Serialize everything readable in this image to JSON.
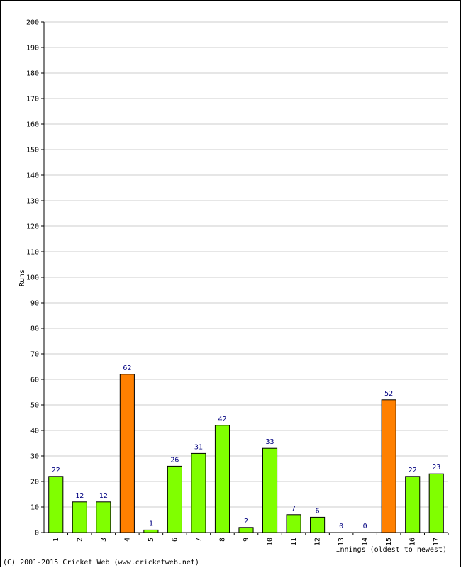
{
  "chart_data": {
    "type": "bar",
    "categories": [
      "1",
      "2",
      "3",
      "4",
      "5",
      "6",
      "7",
      "8",
      "9",
      "10",
      "11",
      "12",
      "13",
      "14",
      "15",
      "16",
      "17"
    ],
    "values": [
      22,
      12,
      12,
      62,
      1,
      26,
      31,
      42,
      2,
      33,
      7,
      6,
      0,
      0,
      52,
      22,
      23
    ],
    "highlight": [
      false,
      false,
      false,
      true,
      false,
      false,
      false,
      false,
      false,
      false,
      false,
      false,
      false,
      false,
      true,
      false,
      false
    ],
    "title": "",
    "xlabel": "Innings (oldest to newest)",
    "ylabel": "Runs",
    "ylim": [
      0,
      200
    ],
    "ytick_step": 10,
    "grid": true,
    "colors": {
      "normal": "#80ff00",
      "highlight": "#ff8000",
      "bar_stroke": "#000000",
      "grid": "#cccccc",
      "data_label": "#000080"
    }
  },
  "footer": {
    "copyright": "(C) 2001-2015 Cricket Web (www.cricketweb.net)"
  }
}
